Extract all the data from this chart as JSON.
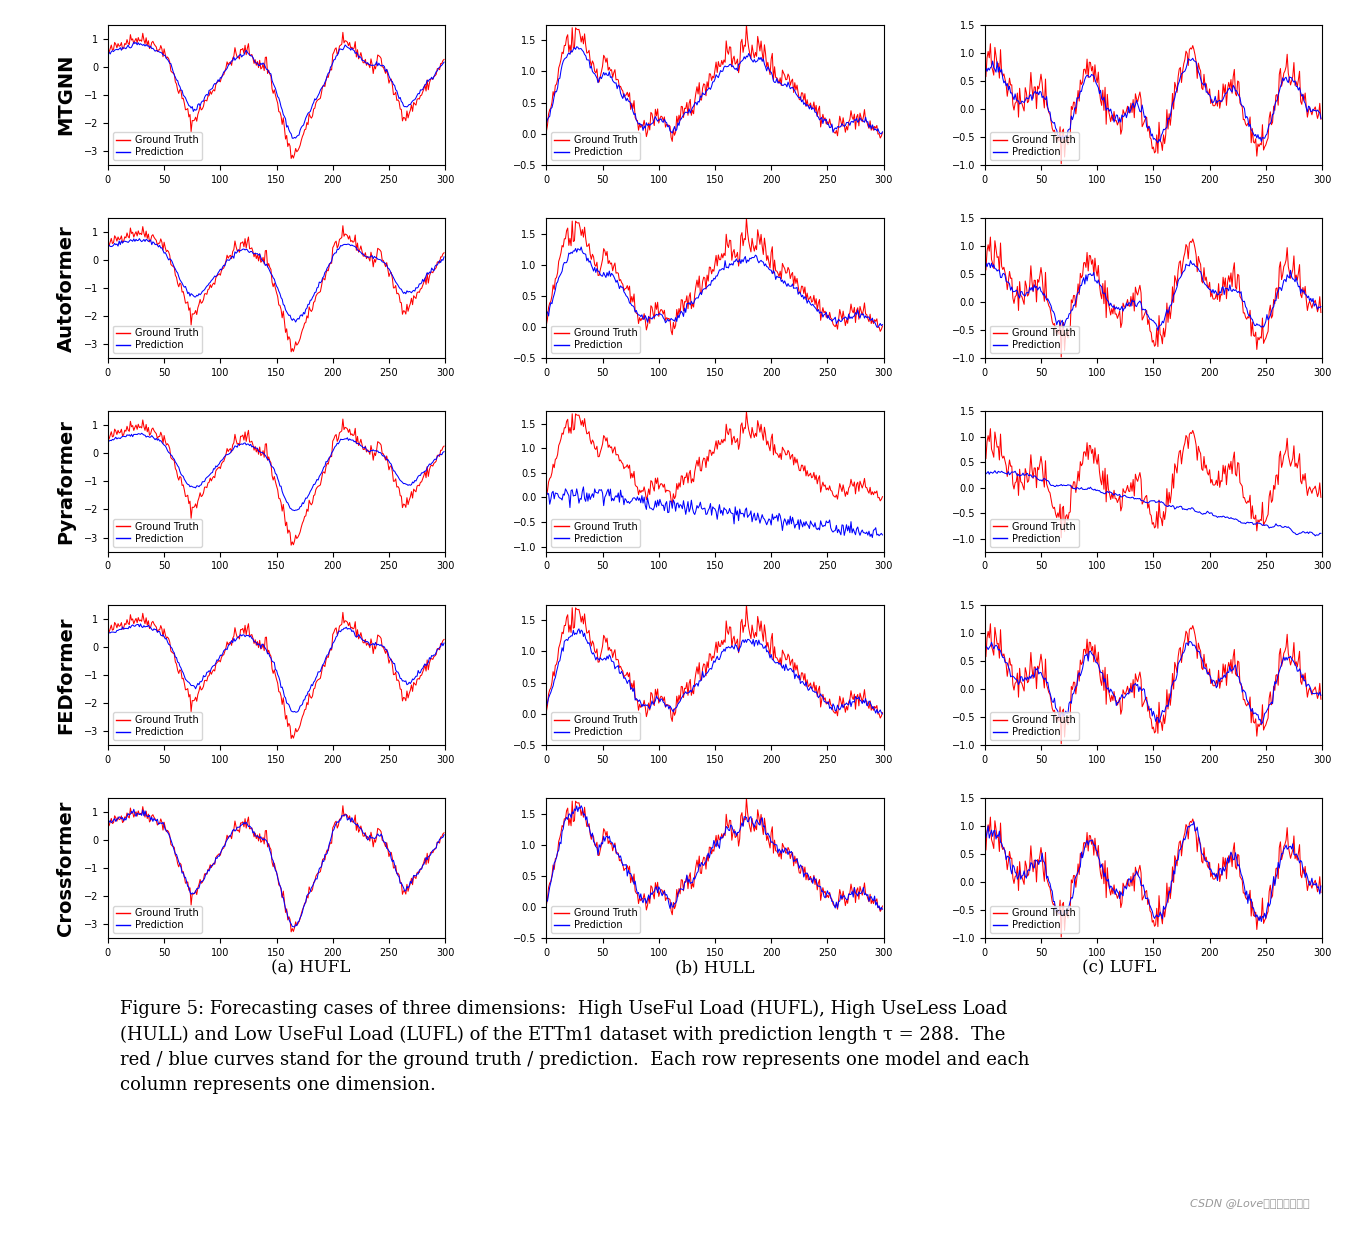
{
  "rows": [
    "MTGNN",
    "Autoformer",
    "Pyraformer",
    "FEDformer",
    "Crossformer"
  ],
  "cols": [
    "(a) HUFL",
    "(b) HULL",
    "(c) LUFL"
  ],
  "gt_color": "#ff0000",
  "pred_color": "#0000ff",
  "background": "#ffffff",
  "figure_caption_line1": "Figure 5: Forecasting cases of three dimensions:  High UseFul Load (HUFL), High UseLess Load",
  "figure_caption_line2": "(HULL) and Low UseFul Load (LUFL) of the ETTm1 dataset with prediction length τ = 288.  The",
  "figure_caption_line3": "red / blue curves stand for the ground truth / prediction.  Each row represents one model and each",
  "figure_caption_line4": "column represents one dimension.",
  "watermark": "CSDN @Love向日葵的今天子",
  "row_label_fontsize": 14,
  "col_label_fontsize": 12,
  "caption_fontsize": 13,
  "tick_fontsize": 7,
  "legend_fontsize": 7,
  "seed": 42,
  "ylims": [
    [
      [
        -3.5,
        1.5
      ],
      [
        -0.5,
        1.75
      ],
      [
        -1.0,
        1.5
      ]
    ],
    [
      [
        -3.5,
        1.5
      ],
      [
        -0.5,
        1.75
      ],
      [
        -1.0,
        1.5
      ]
    ],
    [
      [
        -3.5,
        1.5
      ],
      [
        -1.1,
        1.75
      ],
      [
        -1.25,
        1.5
      ]
    ],
    [
      [
        -3.5,
        1.5
      ],
      [
        -0.5,
        1.75
      ],
      [
        -1.0,
        1.5
      ]
    ],
    [
      [
        -3.5,
        1.5
      ],
      [
        -0.5,
        1.75
      ],
      [
        -1.0,
        1.5
      ]
    ]
  ]
}
